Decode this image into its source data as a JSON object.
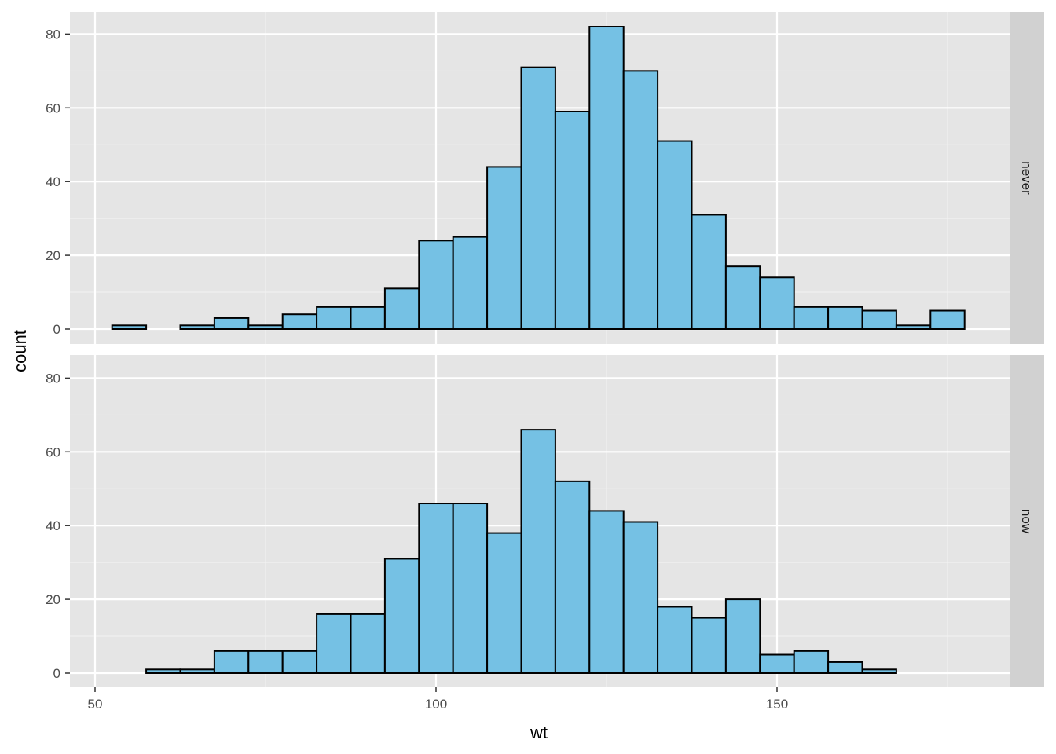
{
  "chart_data": {
    "type": "bar",
    "subtype": "faceted-histogram",
    "xlabel": "wt",
    "ylabel": "count",
    "xlim": [
      50,
      183
    ],
    "ylim": [
      0,
      85
    ],
    "x_ticks": [
      50,
      100,
      150
    ],
    "y_ticks": [
      0,
      20,
      40,
      60,
      80
    ],
    "bin_width": 5,
    "bin_starts": [
      52.5,
      57.5,
      62.5,
      67.5,
      72.5,
      77.5,
      82.5,
      87.5,
      92.5,
      97.5,
      102.5,
      107.5,
      112.5,
      117.5,
      122.5,
      127.5,
      132.5,
      137.5,
      142.5,
      147.5,
      152.5,
      157.5,
      162.5,
      167.5,
      172.5
    ],
    "fill_color": "#75C1E4",
    "outline_color": "#000000",
    "panel_background": "#E5E5E5",
    "strip_background": "#D1D1D1",
    "grid": true,
    "facets": [
      {
        "label": "never",
        "values": [
          1,
          0,
          1,
          3,
          1,
          4,
          6,
          6,
          11,
          24,
          25,
          44,
          71,
          59,
          82,
          70,
          51,
          31,
          17,
          14,
          6,
          6,
          5,
          1,
          5
        ]
      },
      {
        "label": "now",
        "values": [
          0,
          1,
          1,
          6,
          6,
          6,
          16,
          16,
          31,
          46,
          46,
          38,
          66,
          52,
          44,
          41,
          18,
          15,
          20,
          5,
          6,
          3,
          1,
          0,
          0
        ]
      }
    ]
  }
}
